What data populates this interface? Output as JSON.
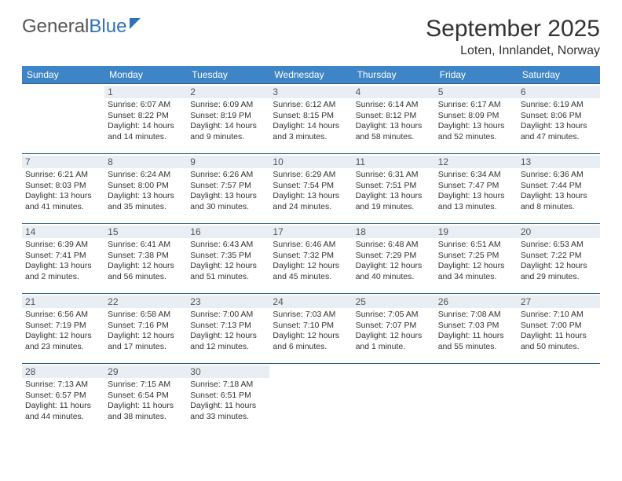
{
  "brand": {
    "part1": "General",
    "part2": "Blue"
  },
  "title": "September 2025",
  "location": "Loten, Innlandet, Norway",
  "columns": [
    "Sunday",
    "Monday",
    "Tuesday",
    "Wednesday",
    "Thursday",
    "Friday",
    "Saturday"
  ],
  "colors": {
    "header_bg": "#3d85c6",
    "header_text": "#ffffff",
    "border": "#2b5d8a",
    "daynum_bg": "#e8eef4",
    "text": "#333333",
    "brand_blue": "#2f72b8"
  },
  "weeks": [
    [
      null,
      {
        "n": "1",
        "sr": "Sunrise: 6:07 AM",
        "ss": "Sunset: 8:22 PM",
        "dl": "Daylight: 14 hours and 14 minutes."
      },
      {
        "n": "2",
        "sr": "Sunrise: 6:09 AM",
        "ss": "Sunset: 8:19 PM",
        "dl": "Daylight: 14 hours and 9 minutes."
      },
      {
        "n": "3",
        "sr": "Sunrise: 6:12 AM",
        "ss": "Sunset: 8:15 PM",
        "dl": "Daylight: 14 hours and 3 minutes."
      },
      {
        "n": "4",
        "sr": "Sunrise: 6:14 AM",
        "ss": "Sunset: 8:12 PM",
        "dl": "Daylight: 13 hours and 58 minutes."
      },
      {
        "n": "5",
        "sr": "Sunrise: 6:17 AM",
        "ss": "Sunset: 8:09 PM",
        "dl": "Daylight: 13 hours and 52 minutes."
      },
      {
        "n": "6",
        "sr": "Sunrise: 6:19 AM",
        "ss": "Sunset: 8:06 PM",
        "dl": "Daylight: 13 hours and 47 minutes."
      }
    ],
    [
      {
        "n": "7",
        "sr": "Sunrise: 6:21 AM",
        "ss": "Sunset: 8:03 PM",
        "dl": "Daylight: 13 hours and 41 minutes."
      },
      {
        "n": "8",
        "sr": "Sunrise: 6:24 AM",
        "ss": "Sunset: 8:00 PM",
        "dl": "Daylight: 13 hours and 35 minutes."
      },
      {
        "n": "9",
        "sr": "Sunrise: 6:26 AM",
        "ss": "Sunset: 7:57 PM",
        "dl": "Daylight: 13 hours and 30 minutes."
      },
      {
        "n": "10",
        "sr": "Sunrise: 6:29 AM",
        "ss": "Sunset: 7:54 PM",
        "dl": "Daylight: 13 hours and 24 minutes."
      },
      {
        "n": "11",
        "sr": "Sunrise: 6:31 AM",
        "ss": "Sunset: 7:51 PM",
        "dl": "Daylight: 13 hours and 19 minutes."
      },
      {
        "n": "12",
        "sr": "Sunrise: 6:34 AM",
        "ss": "Sunset: 7:47 PM",
        "dl": "Daylight: 13 hours and 13 minutes."
      },
      {
        "n": "13",
        "sr": "Sunrise: 6:36 AM",
        "ss": "Sunset: 7:44 PM",
        "dl": "Daylight: 13 hours and 8 minutes."
      }
    ],
    [
      {
        "n": "14",
        "sr": "Sunrise: 6:39 AM",
        "ss": "Sunset: 7:41 PM",
        "dl": "Daylight: 13 hours and 2 minutes."
      },
      {
        "n": "15",
        "sr": "Sunrise: 6:41 AM",
        "ss": "Sunset: 7:38 PM",
        "dl": "Daylight: 12 hours and 56 minutes."
      },
      {
        "n": "16",
        "sr": "Sunrise: 6:43 AM",
        "ss": "Sunset: 7:35 PM",
        "dl": "Daylight: 12 hours and 51 minutes."
      },
      {
        "n": "17",
        "sr": "Sunrise: 6:46 AM",
        "ss": "Sunset: 7:32 PM",
        "dl": "Daylight: 12 hours and 45 minutes."
      },
      {
        "n": "18",
        "sr": "Sunrise: 6:48 AM",
        "ss": "Sunset: 7:29 PM",
        "dl": "Daylight: 12 hours and 40 minutes."
      },
      {
        "n": "19",
        "sr": "Sunrise: 6:51 AM",
        "ss": "Sunset: 7:25 PM",
        "dl": "Daylight: 12 hours and 34 minutes."
      },
      {
        "n": "20",
        "sr": "Sunrise: 6:53 AM",
        "ss": "Sunset: 7:22 PM",
        "dl": "Daylight: 12 hours and 29 minutes."
      }
    ],
    [
      {
        "n": "21",
        "sr": "Sunrise: 6:56 AM",
        "ss": "Sunset: 7:19 PM",
        "dl": "Daylight: 12 hours and 23 minutes."
      },
      {
        "n": "22",
        "sr": "Sunrise: 6:58 AM",
        "ss": "Sunset: 7:16 PM",
        "dl": "Daylight: 12 hours and 17 minutes."
      },
      {
        "n": "23",
        "sr": "Sunrise: 7:00 AM",
        "ss": "Sunset: 7:13 PM",
        "dl": "Daylight: 12 hours and 12 minutes."
      },
      {
        "n": "24",
        "sr": "Sunrise: 7:03 AM",
        "ss": "Sunset: 7:10 PM",
        "dl": "Daylight: 12 hours and 6 minutes."
      },
      {
        "n": "25",
        "sr": "Sunrise: 7:05 AM",
        "ss": "Sunset: 7:07 PM",
        "dl": "Daylight: 12 hours and 1 minute."
      },
      {
        "n": "26",
        "sr": "Sunrise: 7:08 AM",
        "ss": "Sunset: 7:03 PM",
        "dl": "Daylight: 11 hours and 55 minutes."
      },
      {
        "n": "27",
        "sr": "Sunrise: 7:10 AM",
        "ss": "Sunset: 7:00 PM",
        "dl": "Daylight: 11 hours and 50 minutes."
      }
    ],
    [
      {
        "n": "28",
        "sr": "Sunrise: 7:13 AM",
        "ss": "Sunset: 6:57 PM",
        "dl": "Daylight: 11 hours and 44 minutes."
      },
      {
        "n": "29",
        "sr": "Sunrise: 7:15 AM",
        "ss": "Sunset: 6:54 PM",
        "dl": "Daylight: 11 hours and 38 minutes."
      },
      {
        "n": "30",
        "sr": "Sunrise: 7:18 AM",
        "ss": "Sunset: 6:51 PM",
        "dl": "Daylight: 11 hours and 33 minutes."
      },
      null,
      null,
      null,
      null
    ]
  ]
}
